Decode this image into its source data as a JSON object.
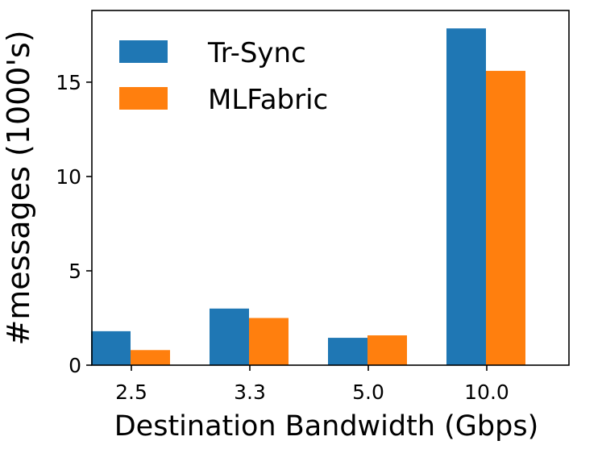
{
  "chart_data": {
    "type": "bar",
    "title": "",
    "xlabel": "Destination Bandwidth (Gbps)",
    "ylabel": "#messages (1000's)",
    "categories": [
      "2.5",
      "3.3",
      "5.0",
      "10.0"
    ],
    "series": [
      {
        "name": "Tr-Sync",
        "values": [
          1.8,
          3.0,
          1.45,
          17.85
        ],
        "color": "#1f77b4"
      },
      {
        "name": "MLFabric",
        "values": [
          0.8,
          2.5,
          1.58,
          15.6
        ],
        "color": "#ff7f0e"
      }
    ],
    "ylim": [
      0,
      18.8
    ],
    "yticks": [
      0,
      5,
      10,
      15
    ],
    "legend_position": "top-left",
    "grid": false
  }
}
